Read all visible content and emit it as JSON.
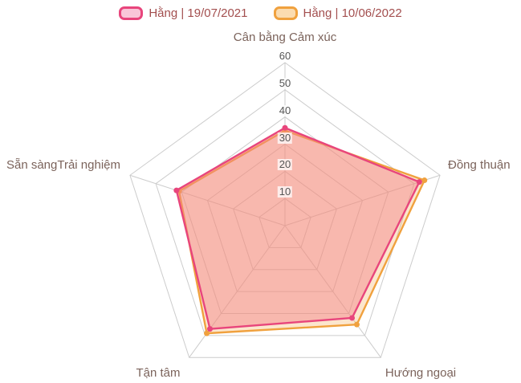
{
  "chart_data": {
    "type": "radar",
    "categories": [
      "Cân bằng Cảm xúc",
      "Đồng thuận",
      "Hướng ngoại",
      "Tận tâm",
      "Sẵn sàngTrải nghiệm"
    ],
    "max": 60,
    "rings": [
      10,
      20,
      30,
      40,
      50,
      60
    ],
    "series": [
      {
        "name": "Hằng | 19/07/2021",
        "color": "#e8457c",
        "fill": "rgba(244,129,138,0.45)",
        "values": [
          36,
          52,
          42,
          47,
          42
        ]
      },
      {
        "name": "Hằng | 10/06/2022",
        "color": "#f0a13e",
        "fill": "rgba(245,166,77,0.28)",
        "values": [
          35,
          54,
          45,
          49,
          41
        ]
      }
    ],
    "grid_color": "#cccccc",
    "legend_position": "top",
    "grid": "pentagon-rings"
  }
}
